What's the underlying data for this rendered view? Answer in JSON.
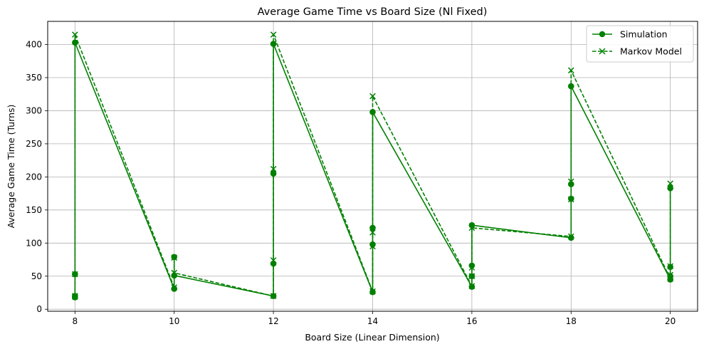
{
  "chart_data": {
    "type": "line",
    "title": "Average Game Time vs Board Size (Nl Fixed)",
    "xlabel": "Board Size (Linear Dimension)",
    "ylabel": "Average Game Time (Turns)",
    "xlim": [
      7.45,
      20.55
    ],
    "ylim": [
      -3,
      435
    ],
    "xticks": [
      8,
      10,
      12,
      14,
      16,
      18,
      20
    ],
    "yticks": [
      0,
      50,
      100,
      150,
      200,
      250,
      300,
      350,
      400
    ],
    "grid": true,
    "legend_position": "top-right",
    "color": "#008000",
    "series": [
      {
        "name": "Simulation",
        "style": "solid",
        "marker": "circle",
        "x": [
          8,
          8,
          8,
          8,
          10,
          10,
          10,
          12,
          12,
          12,
          12,
          14,
          14,
          14,
          14,
          16,
          16,
          16,
          16,
          18,
          18,
          18,
          18,
          20,
          20,
          20,
          20
        ],
        "y": [
          20,
          18,
          53,
          403,
          31,
          79,
          51,
          20,
          69,
          205,
          401,
          26,
          98,
          123,
          298,
          34,
          50,
          66,
          127,
          108,
          167,
          189,
          337,
          45,
          50,
          64,
          183
        ]
      },
      {
        "name": "Markov Model",
        "style": "dashed",
        "marker": "x",
        "x": [
          8,
          8,
          8,
          8,
          10,
          10,
          10,
          12,
          12,
          12,
          12,
          14,
          14,
          14,
          14,
          16,
          16,
          16,
          16,
          18,
          18,
          18,
          18,
          20,
          20,
          20,
          20
        ],
        "y": [
          19,
          20,
          53,
          415,
          33,
          78,
          55,
          20,
          74,
          212,
          415,
          27,
          95,
          116,
          322,
          35,
          50,
          63,
          123,
          110,
          166,
          193,
          361,
          46,
          52,
          65,
          190
        ]
      }
    ]
  }
}
